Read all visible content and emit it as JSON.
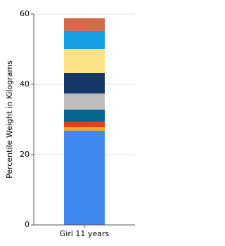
{
  "chart_data": {
    "type": "stacked_bar",
    "y_label": "Percentile Weight in Kilograms",
    "categories": [
      "Girl 11 years"
    ],
    "series": [
      {
        "color": "#4189f0",
        "values": [
          26.8
        ]
      },
      {
        "color": "#f5a623",
        "values": [
          1
        ]
      },
      {
        "color": "#e0401c",
        "values": [
          1.6
        ]
      },
      {
        "color": "#086590",
        "values": [
          3.4
        ]
      },
      {
        "color": "#bebebe",
        "values": [
          4.6
        ]
      },
      {
        "color": "#163868",
        "values": [
          5.8
        ]
      },
      {
        "color": "#fee285",
        "values": [
          6.8
        ]
      },
      {
        "color": "#15a0e3",
        "values": [
          5.2
        ]
      },
      {
        "color": "#d36b4b",
        "values": [
          3.6
        ]
      }
    ],
    "ylim": [
      0,
      60
    ],
    "yticks": [
      0,
      20,
      40,
      60
    ],
    "grid": true
  }
}
